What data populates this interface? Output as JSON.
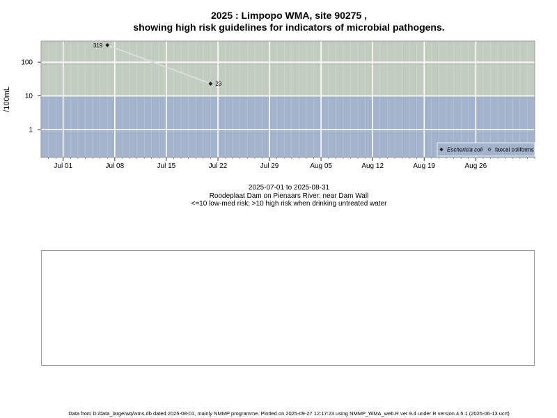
{
  "titles": {
    "line1": "2025 : Limpopo WMA, site 90275 ,",
    "line2": "showing high risk guidelines for indicators of microbial pathogens."
  },
  "subtitles": {
    "date_range": "2025-07-01 to 2025-08-31",
    "location": "Roodeplaat Dam on Pienaars River: near Dam Wall",
    "risk_note": "<=10 low-med risk; >10 high risk when drinking untreated water"
  },
  "footer": "Data from D:/data_large/wq/wms.db dated 2025-08-01, mainly NMMP programme. Plotted on 2025-09-27 12:17:23 using NMMP_WMA_web.R ver 9.4 under R version 4.5.1 (2025-06-13 ucrt)",
  "chart_data": {
    "type": "line",
    "ylabel": "/100mL",
    "yscale": "log",
    "ylim": [
      0.15,
      420
    ],
    "xlim": [
      "2025-06-28",
      "2025-09-03"
    ],
    "threshold": 10,
    "y_ticks": [
      {
        "value": 1,
        "label": "1"
      },
      {
        "value": 10,
        "label": "10"
      },
      {
        "value": 100,
        "label": "100"
      }
    ],
    "x_ticks": [
      {
        "date": "2025-07-01",
        "label": "Jul 01"
      },
      {
        "date": "2025-07-08",
        "label": "Jul 08"
      },
      {
        "date": "2025-07-15",
        "label": "Jul 15"
      },
      {
        "date": "2025-07-22",
        "label": "Jul 22"
      },
      {
        "date": "2025-07-29",
        "label": "Jul 29"
      },
      {
        "date": "2025-08-05",
        "label": "Aug 05"
      },
      {
        "date": "2025-08-12",
        "label": "Aug 12"
      },
      {
        "date": "2025-08-19",
        "label": "Aug 19"
      },
      {
        "date": "2025-08-26",
        "label": "Aug 26"
      }
    ],
    "series": [
      {
        "name": "Eschericia coli",
        "points": [
          {
            "date": "2025-07-07",
            "value": 319,
            "label": "319"
          },
          {
            "date": "2025-07-21",
            "value": 23,
            "label": "23"
          }
        ]
      },
      {
        "name": "faecal coliforms",
        "points": []
      }
    ],
    "colors": {
      "high_risk_band": "#c2cdc0",
      "low_risk_band": "#a3b3cc",
      "grid": "#ffffff",
      "line": "#dcdcdc",
      "marker": "#222222"
    },
    "legend_position": "bottom-right"
  }
}
